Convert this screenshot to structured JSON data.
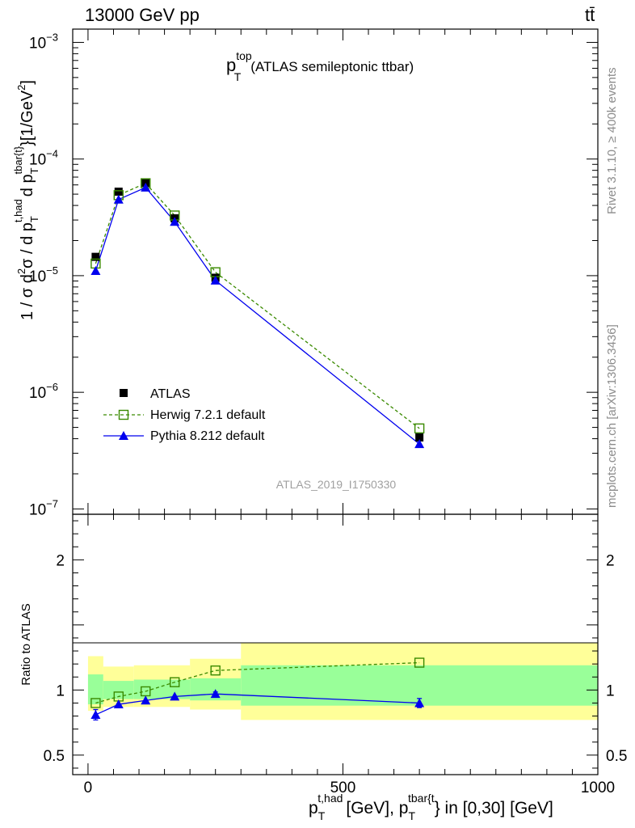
{
  "chart_data": [
    {
      "type": "line",
      "panel": "main",
      "header_left": "13000 GeV pp",
      "header_right": "tt̄",
      "title_main": "p",
      "title_sup": "top",
      "title_sub": "T",
      "title_suffix": "(ATLAS semileptonic ttbar)",
      "ylabel": "1 / σ d²σ / d p_T^{t,had} d p_T^{tbar{t}} [1/GeV²]",
      "ylabel_parts": {
        "p1": "1 / σ d",
        "sup2": "2",
        "p2": "σ / d p",
        "subT1": "T",
        "supHad": "t,had",
        "p3": "d p",
        "subT2": "T",
        "supTbar": "tbar{t}",
        "p4": "}[1/GeV",
        "sup2b": "2",
        "p5": "]"
      },
      "yscale": "log",
      "ylim": [
        9e-08,
        0.0013
      ],
      "xlim": [
        -30,
        1000
      ],
      "ytick_labels": [
        {
          "base": "10",
          "exp": "−3",
          "value": 0.001
        },
        {
          "base": "10",
          "exp": "−4",
          "value": 0.0001
        },
        {
          "base": "10",
          "exp": "−5",
          "value": 1e-05
        },
        {
          "base": "10",
          "exp": "−6",
          "value": 1e-06
        },
        {
          "base": "10",
          "exp": "−7",
          "value": 1e-07
        }
      ],
      "watermark": "ATLAS_2019_I1750330",
      "legend": {
        "position": "bottom-left",
        "entries": [
          "ATLAS",
          "Herwig 7.2.1 default",
          "Pythia 8.212 default"
        ]
      },
      "series": [
        {
          "name": "ATLAS",
          "style": "marker",
          "color": "#000000",
          "x": [
            15,
            60,
            113,
            170,
            250,
            650
          ],
          "values": [
            1.45e-05,
            5.25e-05,
            6.25e-05,
            3.1e-05,
            9.6e-06,
            4.1e-07
          ]
        },
        {
          "name": "Herwig 7.2.1 default",
          "style": "dashed-open-square",
          "color": "#3a8a00",
          "x": [
            15,
            60,
            113,
            170,
            250,
            650
          ],
          "values": [
            1.27e-05,
            4.9e-05,
            6.2e-05,
            3.28e-05,
            1.07e-05,
            4.9e-07
          ]
        },
        {
          "name": "Pythia 8.212 default",
          "style": "solid-triangle",
          "color": "#0000ee",
          "x": [
            15,
            60,
            113,
            170,
            250,
            650
          ],
          "values": [
            1.1e-05,
            4.5e-05,
            5.7e-05,
            2.9e-05,
            9.1e-06,
            3.6e-07
          ]
        }
      ]
    },
    {
      "type": "line",
      "panel": "ratio",
      "ylabel": "Ratio to ATLAS",
      "xlabel_parts": {
        "p1": "p",
        "subT1": "T",
        "supHad": "t,had",
        "p2": "[GeV], p",
        "subT2": "T",
        "supTbar": "tbar{t",
        "p3": "} in [0,30] [GeV]"
      },
      "xlim": [
        -30,
        1000
      ],
      "ylim": [
        0.35,
        2.35
      ],
      "yticks": [
        {
          "label": "2",
          "value": 2
        },
        {
          "label": "1",
          "value": 1
        },
        {
          "label": "0.5",
          "value": 0.5
        }
      ],
      "xticks": [
        {
          "label": "0",
          "value": 0
        },
        {
          "label": "500",
          "value": 500
        },
        {
          "label": "1000",
          "value": 1000
        }
      ],
      "bins": [
        {
          "lo": 0,
          "hi": 30,
          "stat": [
            0.89,
            1.12
          ],
          "total": [
            0.84,
            1.26
          ]
        },
        {
          "lo": 30,
          "hi": 90,
          "stat": [
            0.93,
            1.07
          ],
          "total": [
            0.87,
            1.18
          ]
        },
        {
          "lo": 90,
          "hi": 200,
          "stat": [
            0.93,
            1.08
          ],
          "total": [
            0.87,
            1.19
          ]
        },
        {
          "lo": 200,
          "hi": 300,
          "stat": [
            0.92,
            1.09
          ],
          "total": [
            0.85,
            1.24
          ]
        },
        {
          "lo": 300,
          "hi": 1000,
          "stat": [
            0.88,
            1.19
          ],
          "total": [
            0.77,
            1.36
          ]
        }
      ],
      "series": [
        {
          "name": "Herwig 7.2.1 default",
          "color": "#3a8a00",
          "x": [
            15,
            60,
            113,
            170,
            250,
            650
          ],
          "values": [
            0.9,
            0.95,
            0.99,
            1.06,
            1.15,
            1.21
          ]
        },
        {
          "name": "Pythia 8.212 default",
          "color": "#0000ee",
          "x": [
            15,
            60,
            113,
            170,
            250,
            650
          ],
          "values": [
            0.81,
            0.89,
            0.92,
            0.95,
            0.97,
            0.9
          ],
          "errors": [
            0.04,
            0.0,
            0.0,
            0.0,
            0.015,
            0.035
          ]
        }
      ]
    }
  ],
  "side_text": {
    "rivet": "Rivet 3.1.10, ≥ 400k events",
    "mcplots": "mcplots.cern.ch [arXiv:1306.3436]"
  }
}
